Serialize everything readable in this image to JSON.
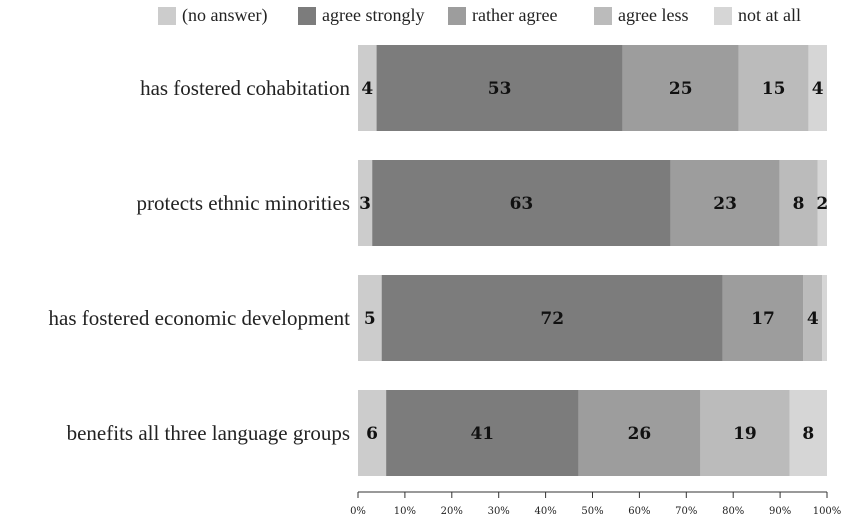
{
  "chart_data": {
    "type": "bar",
    "orientation": "horizontal",
    "stacked": true,
    "title": "",
    "xlabel": "",
    "ylabel": "",
    "xlim": [
      0,
      100
    ],
    "x_ticks": [
      "0%",
      "10%",
      "20%",
      "30%",
      "40%",
      "50%",
      "60%",
      "70%",
      "80%",
      "90%",
      "100%"
    ],
    "categories": [
      "has fostered cohabitation",
      "protects ethnic minorities",
      "has fostered economic development",
      "benefits all three language groups"
    ],
    "series": [
      {
        "name": "(no answer)",
        "color": "#cccccc",
        "values": [
          4,
          3,
          5,
          6
        ],
        "labels": [
          "4",
          "3",
          "5",
          "6"
        ]
      },
      {
        "name": "agree strongly",
        "color": "#7c7c7c",
        "values": [
          53,
          63,
          72,
          41
        ],
        "labels": [
          "53",
          "63",
          "72",
          "41"
        ]
      },
      {
        "name": "rather agree",
        "color": "#9d9d9d",
        "values": [
          25,
          23,
          17,
          26
        ],
        "labels": [
          "25",
          "23",
          "17",
          "26"
        ]
      },
      {
        "name": "agree less",
        "color": "#bbbbbb",
        "values": [
          15,
          8,
          4,
          19
        ],
        "labels": [
          "15",
          "8",
          "4",
          "19"
        ]
      },
      {
        "name": "not at all",
        "color": "#d6d6d6",
        "values": [
          4,
          2,
          1,
          8
        ],
        "labels": [
          "4",
          "2",
          "",
          "8"
        ]
      }
    ],
    "legend": "top",
    "grid": false
  }
}
